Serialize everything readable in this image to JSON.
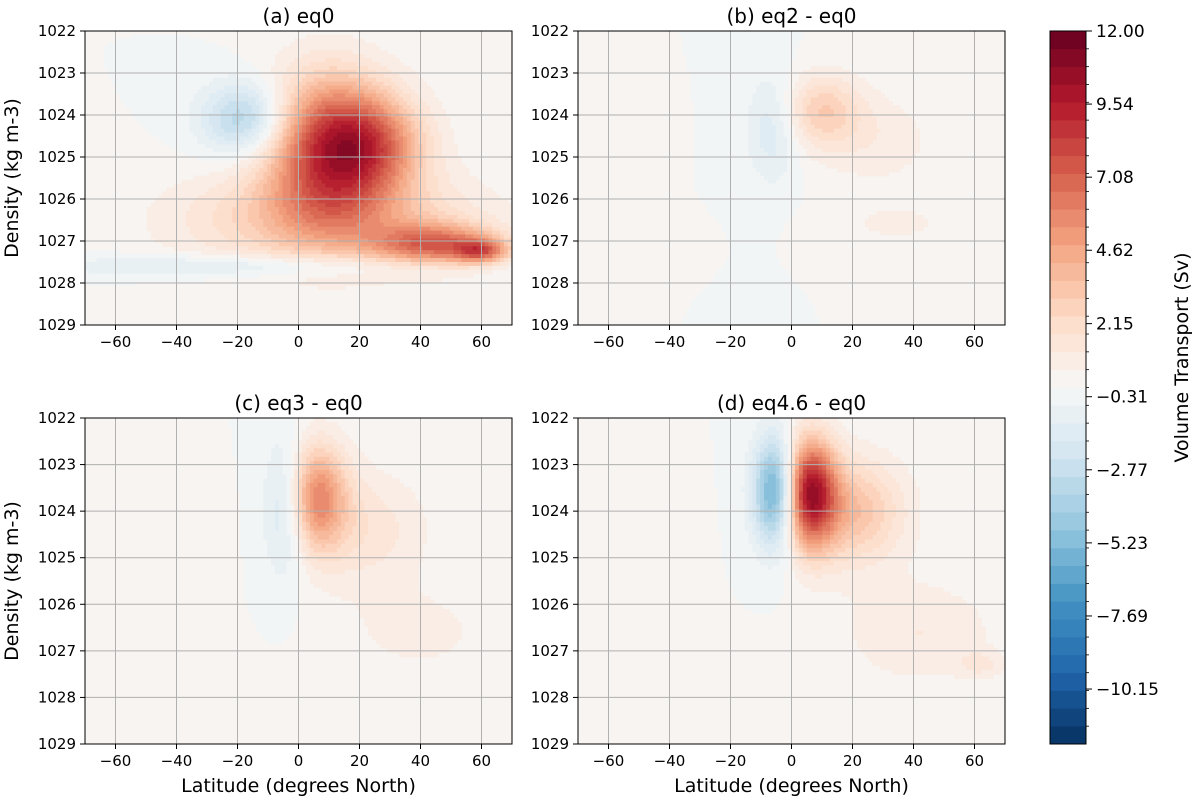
{
  "chart_data": {
    "type": "heatmap",
    "plot_kind": "filled contour",
    "layout": "2x2 panels with shared colorbar on the right",
    "grid": true,
    "panels": [
      {
        "id": "a",
        "title": "(a) eq0",
        "xlabel": "",
        "ylabel": "Density (kg m-3)",
        "xlim": [
          -70,
          70
        ],
        "ylim": [
          1029,
          1022
        ],
        "y_inverted": true,
        "xticks": [
          -60,
          -40,
          -20,
          0,
          20,
          40,
          60
        ],
        "yticks": [
          1022,
          1023,
          1024,
          1025,
          1026,
          1027,
          1028,
          1029
        ],
        "features": [
          {
            "lat": 10,
            "dens": 1024.8,
            "value": 8.0,
            "sx": 14,
            "sy": 1.2
          },
          {
            "lat": 25,
            "dens": 1024.7,
            "value": 4.5,
            "sx": 12,
            "sy": 0.8
          },
          {
            "lat": 10,
            "dens": 1026.5,
            "value": 3.5,
            "sx": 32,
            "sy": 0.8
          },
          {
            "lat": 45,
            "dens": 1027.1,
            "value": 6.0,
            "sx": 14,
            "sy": 0.35
          },
          {
            "lat": 60,
            "dens": 1027.25,
            "value": 5.0,
            "sx": 6,
            "sy": 0.2
          },
          {
            "lat": -17,
            "dens": 1024.1,
            "value": -4.0,
            "sx": 10,
            "sy": 0.6
          },
          {
            "lat": -15,
            "dens": 1027.6,
            "value": -1.8,
            "sx": 45,
            "sy": 0.18
          }
        ]
      },
      {
        "id": "b",
        "title": "(b) eq2 - eq0",
        "xlabel": "",
        "ylabel": "",
        "xlim": [
          -70,
          70
        ],
        "ylim": [
          1029,
          1022
        ],
        "y_inverted": true,
        "xticks": [
          -60,
          -40,
          -20,
          0,
          20,
          40,
          60
        ],
        "yticks": [
          1022,
          1023,
          1024,
          1025,
          1026,
          1027,
          1028,
          1029
        ],
        "features": [
          {
            "lat": -6,
            "dens": 1024.3,
            "value": -1.8,
            "sx": 6,
            "sy": 0.9
          },
          {
            "lat": 10,
            "dens": 1023.9,
            "value": 2.8,
            "sx": 9,
            "sy": 0.6
          },
          {
            "lat": 28,
            "dens": 1024.6,
            "value": 1.0,
            "sx": 14,
            "sy": 0.8
          },
          {
            "lat": 35,
            "dens": 1026.6,
            "value": 0.7,
            "sx": 16,
            "sy": 0.4
          }
        ]
      },
      {
        "id": "c",
        "title": "(c) eq3 - eq0",
        "xlabel": "Latitude (degrees North)",
        "ylabel": "Density (kg m-3)",
        "xlim": [
          -70,
          70
        ],
        "ylim": [
          1029,
          1022
        ],
        "y_inverted": true,
        "xticks": [
          -60,
          -40,
          -20,
          0,
          20,
          40,
          60
        ],
        "yticks": [
          1022,
          1023,
          1024,
          1025,
          1026,
          1027,
          1028,
          1029
        ],
        "features": [
          {
            "lat": -4,
            "dens": 1023.9,
            "value": -2.8,
            "sx": 5,
            "sy": 1.0
          },
          {
            "lat": 6,
            "dens": 1023.7,
            "value": 5.5,
            "sx": 7,
            "sy": 0.8
          },
          {
            "lat": 22,
            "dens": 1024.4,
            "value": 1.6,
            "sx": 14,
            "sy": 0.9
          },
          {
            "lat": 40,
            "dens": 1026.6,
            "value": 0.8,
            "sx": 18,
            "sy": 0.7
          }
        ]
      },
      {
        "id": "d",
        "title": "(d) eq4.6 - eq0",
        "xlabel": "Latitude (degrees North)",
        "ylabel": "",
        "xlim": [
          -70,
          70
        ],
        "ylim": [
          1029,
          1022
        ],
        "y_inverted": true,
        "xticks": [
          -60,
          -40,
          -20,
          0,
          20,
          40,
          60
        ],
        "yticks": [
          1022,
          1023,
          1024,
          1025,
          1026,
          1027,
          1028,
          1029
        ],
        "features": [
          {
            "lat": -5,
            "dens": 1023.6,
            "value": -7.0,
            "sx": 5,
            "sy": 0.8
          },
          {
            "lat": 6,
            "dens": 1023.6,
            "value": 9.5,
            "sx": 6,
            "sy": 0.8
          },
          {
            "lat": 20,
            "dens": 1024.0,
            "value": 3.5,
            "sx": 12,
            "sy": 0.8
          },
          {
            "lat": 42,
            "dens": 1026.6,
            "value": 1.2,
            "sx": 18,
            "sy": 0.8
          },
          {
            "lat": 62,
            "dens": 1027.3,
            "value": 1.2,
            "sx": 5,
            "sy": 0.2
          }
        ]
      }
    ],
    "colorbar": {
      "label": "Volume Transport (Sv)",
      "range": [
        -12.0,
        12.0
      ],
      "levels": 40,
      "ticks": [
        12.0,
        9.54,
        7.08,
        4.62,
        2.15,
        -0.31,
        -2.77,
        -5.23,
        -7.69,
        -10.15
      ],
      "tick_labels": [
        "12.00",
        "9.54",
        "7.08",
        "4.62",
        "2.15",
        "−0.31",
        "−2.77",
        "−5.23",
        "−7.69",
        "−10.15"
      ],
      "colormap": "RdBu_r",
      "colors": [
        "#053061",
        "#2166ac",
        "#4393c3",
        "#92c5de",
        "#d1e5f0",
        "#f7f7f7",
        "#fddbc7",
        "#f4a582",
        "#d6604d",
        "#b2182b",
        "#67001f"
      ]
    }
  }
}
